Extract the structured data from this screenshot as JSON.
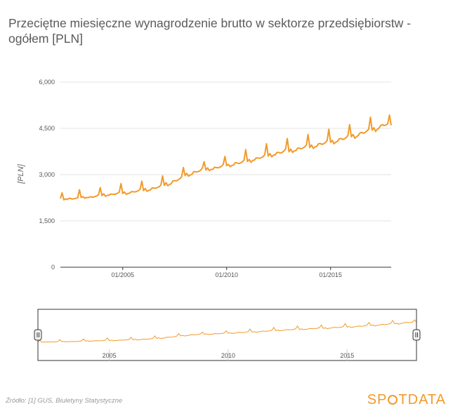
{
  "title": "Przeciętne miesięczne wynagrodzenie brutto w sektorze przedsiębiorstw - ogółem [PLN]",
  "source": "Źródło: [1] GUS, Biuletyny Statystyczne",
  "logo": {
    "left": "SP",
    "right": "TDATA",
    "accent": "#f39a2b"
  },
  "colors": {
    "series": "#f39a2b",
    "grid": "#e3e3e3",
    "axis": "#333333"
  },
  "chart_data": {
    "type": "line",
    "title": "Przeciętne miesięczne wynagrodzenie brutto w sektorze przedsiębiorstw - ogółem [PLN]",
    "ylabel": "[PLN]",
    "xlabel": "",
    "ylim": [
      0,
      6000
    ],
    "yticks": [
      "0",
      "1,500",
      "3,000",
      "4,500",
      "6,000"
    ],
    "yticks_values": [
      0,
      1500,
      3000,
      4500,
      6000
    ],
    "xticks": [
      "01/2005",
      "01/2010",
      "01/2015"
    ],
    "xrange": [
      "2002-01",
      "2017-12"
    ],
    "grid": true,
    "legend": "none",
    "navigator": {
      "xticks": [
        "2005",
        "2010",
        "2015"
      ]
    },
    "series": [
      {
        "frequency": "monthly",
        "start": "2002-01",
        "values": [
          2225,
          2410,
          2180,
          2215,
          2195,
          2235,
          2225,
          2210,
          2220,
          2235,
          2250,
          2510,
          2260,
          2290,
          2235,
          2260,
          2255,
          2280,
          2275,
          2270,
          2290,
          2310,
          2350,
          2580,
          2320,
          2380,
          2300,
          2330,
          2330,
          2370,
          2365,
          2360,
          2370,
          2395,
          2435,
          2710,
          2390,
          2440,
          2360,
          2390,
          2400,
          2450,
          2445,
          2440,
          2455,
          2480,
          2525,
          2790,
          2480,
          2550,
          2460,
          2490,
          2505,
          2570,
          2565,
          2560,
          2580,
          2605,
          2660,
          2960,
          2650,
          2740,
          2640,
          2680,
          2710,
          2800,
          2800,
          2800,
          2830,
          2870,
          2930,
          3230,
          2970,
          3040,
          2950,
          2990,
          3010,
          3100,
          3090,
          3090,
          3110,
          3140,
          3220,
          3420,
          3150,
          3220,
          3130,
          3170,
          3170,
          3240,
          3230,
          3220,
          3240,
          3270,
          3330,
          3590,
          3290,
          3330,
          3260,
          3300,
          3310,
          3390,
          3380,
          3360,
          3380,
          3410,
          3470,
          3810,
          3430,
          3490,
          3400,
          3460,
          3470,
          3540,
          3540,
          3530,
          3550,
          3580,
          3650,
          4000,
          3600,
          3680,
          3580,
          3630,
          3640,
          3720,
          3720,
          3700,
          3720,
          3760,
          3830,
          4170,
          3740,
          3830,
          3720,
          3770,
          3780,
          3860,
          3860,
          3840,
          3860,
          3900,
          3960,
          4300,
          3880,
          3960,
          3850,
          3900,
          3920,
          4000,
          4010,
          3980,
          4000,
          4040,
          4100,
          4470,
          4050,
          4110,
          4000,
          4050,
          4080,
          4160,
          4170,
          4140,
          4160,
          4200,
          4270,
          4620,
          4230,
          4300,
          4180,
          4230,
          4270,
          4350,
          4370,
          4340,
          4370,
          4420,
          4470,
          4860,
          4440,
          4520,
          4400,
          4470,
          4510,
          4600,
          4620,
          4590,
          4610,
          4650,
          4930,
          4600
        ]
      }
    ]
  }
}
